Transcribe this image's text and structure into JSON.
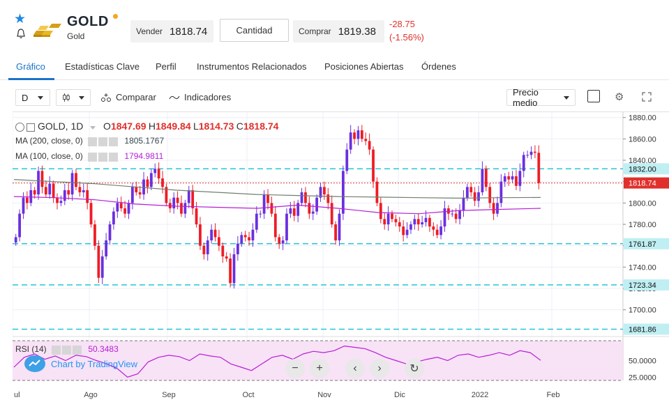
{
  "header": {
    "title": "GOLD",
    "subtitle": "Gold",
    "sell_label": "Vender",
    "sell_price": "1818.74",
    "quantity_label": "Cantidad",
    "buy_label": "Comprar",
    "buy_price": "1819.38",
    "change_abs": "-28.75",
    "change_pct": "(-1.56%)"
  },
  "tabs": [
    "Gráfico",
    "Estadísticas Clave",
    "Perfil",
    "Instrumentos Relacionados",
    "Posiciones Abiertas",
    "Órdenes"
  ],
  "active_tab": "Gráfico",
  "toolbar": {
    "interval": "D",
    "compare_label": "Comparar",
    "indicators_label": "Indicadores",
    "price_mode": "Precio medio"
  },
  "legend": {
    "symbol": "GOLD, 1D",
    "o_label": "O",
    "o": "1847.69",
    "h_label": "H",
    "h": "1849.84",
    "l_label": "L",
    "l": "1814.73",
    "c_label": "C",
    "c": "1818.74",
    "ma200_label": "MA (200, close, 0)",
    "ma200_value": "1805.1767",
    "ma100_label": "MA (100, close, 0)",
    "ma100_value": "1794.9811",
    "rsi_label": "RSI (14)",
    "rsi_value": "50.3483"
  },
  "watermark": "Chart by TradingView",
  "colors": {
    "up": "#6a2fe0",
    "down": "#ee1c25",
    "ma200": "#6e7f6e",
    "ma100": "#b61ed6",
    "hline": "#26c6da",
    "accent": "#1a73c9"
  },
  "chart_data": {
    "type": "candlestick",
    "price_axis_ticks": [
      "1880.00",
      "1860.00",
      "1840.00",
      "1820.00",
      "1800.00",
      "1780.00",
      "1760.00",
      "1740.00",
      "1720.00",
      "1700.00"
    ],
    "price_axis_range": [
      1675,
      1885
    ],
    "time_axis_labels": [
      "ul",
      "Ago",
      "Sep",
      "Oct",
      "Nov",
      "Dic",
      "2022",
      "Feb"
    ],
    "horizontal_lines": [
      {
        "label": "1832.00",
        "value": 1832.0
      },
      {
        "label": "1761.87",
        "value": 1761.87
      },
      {
        "label": "1723.34",
        "value": 1723.34
      },
      {
        "label": "1681.86",
        "value": 1681.86
      }
    ],
    "current_price": {
      "label": "1818.74",
      "value": 1818.74
    },
    "rsi_ticks": [
      "50.0000",
      "25.0000"
    ],
    "rsi_range": [
      20,
      80
    ],
    "candles": [
      1768,
      1790,
      1805,
      1800,
      1812,
      1808,
      1830,
      1815,
      1808,
      1818,
      1805,
      1800,
      1802,
      1812,
      1808,
      1828,
      1815,
      1810,
      1812,
      1800,
      1780,
      1760,
      1730,
      1750,
      1765,
      1780,
      1792,
      1800,
      1795,
      1790,
      1800,
      1815,
      1810,
      1808,
      1822,
      1815,
      1828,
      1832,
      1823,
      1815,
      1800,
      1795,
      1805,
      1800,
      1790,
      1800,
      1812,
      1795,
      1780,
      1760,
      1752,
      1765,
      1775,
      1768,
      1760,
      1750,
      1748,
      1725,
      1752,
      1762,
      1770,
      1768,
      1765,
      1775,
      1790,
      1790,
      1808,
      1800,
      1790,
      1768,
      1762,
      1765,
      1790,
      1795,
      1788,
      1800,
      1810,
      1800,
      1790,
      1792,
      1805,
      1815,
      1808,
      1800,
      1780,
      1765,
      1790,
      1830,
      1850,
      1866,
      1860,
      1868,
      1860,
      1858,
      1850,
      1820,
      1800,
      1785,
      1780,
      1790,
      1785,
      1782,
      1778,
      1770,
      1775,
      1780,
      1785,
      1780,
      1782,
      1786,
      1778,
      1775,
      1770,
      1778,
      1795,
      1790,
      1790,
      1785,
      1793,
      1805,
      1815,
      1810,
      1802,
      1810,
      1832,
      1815,
      1800,
      1790,
      1800,
      1820,
      1825,
      1822,
      1825,
      1816,
      1830,
      1845,
      1845,
      1848,
      1847,
      1818.74
    ],
    "ma200": [
      1822,
      1820,
      1818,
      1815,
      1812,
      1810,
      1808,
      1807,
      1806,
      1805.5,
      1805,
      1804.5,
      1805,
      1805.1767
    ],
    "ma100": [
      1806,
      1805,
      1803,
      1799,
      1797,
      1796,
      1795,
      1798,
      1795,
      1791,
      1790,
      1793,
      1794,
      1794.9811
    ],
    "rsi": [
      40,
      55,
      60,
      52,
      57,
      50,
      58,
      56,
      50,
      45,
      38,
      25,
      30,
      48,
      55,
      58,
      56,
      50,
      60,
      57,
      55,
      45,
      40,
      35,
      45,
      55,
      58,
      52,
      60,
      64,
      62,
      65,
      72,
      70,
      68,
      62,
      55,
      50,
      45,
      48,
      52,
      55,
      50,
      58,
      60,
      55,
      58,
      62,
      58,
      65,
      62,
      50.3483
    ]
  }
}
